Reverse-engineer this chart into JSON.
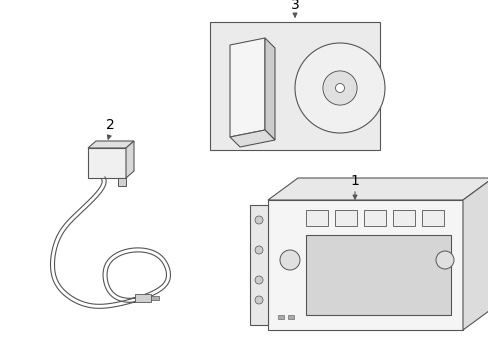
{
  "background_color": "#ffffff",
  "line_color": "#555555",
  "fill_color": "#ebebeb",
  "fig_width": 4.89,
  "fig_height": 3.6,
  "dpi": 100,
  "label_fontsize": 10,
  "lw": 0.8
}
